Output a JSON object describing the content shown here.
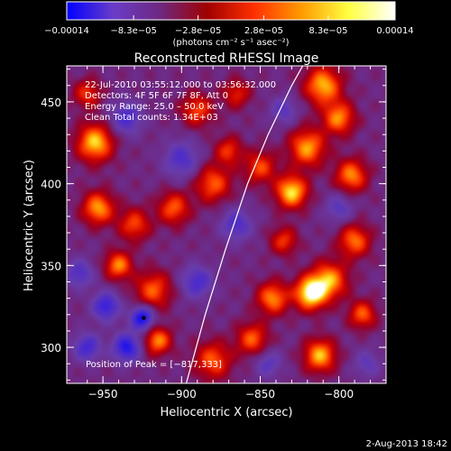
{
  "chart_data": {
    "type": "heatmap",
    "title": "Reconstructed RHESSI Image",
    "xlabel": "Heliocentric X (arcsec)",
    "ylabel": "Heliocentric Y (arcsec)",
    "xlim": [
      -973,
      -770
    ],
    "ylim": [
      278,
      472
    ],
    "x_ticks": [
      -950,
      -900,
      -850,
      -800
    ],
    "x_tick_labels": [
      "−950",
      "−900",
      "−850",
      "−800"
    ],
    "y_ticks": [
      300,
      350,
      400,
      450
    ],
    "y_tick_labels": [
      "300",
      "350",
      "400",
      "450"
    ],
    "colorbar": {
      "range": [
        -0.00014,
        0.00014
      ],
      "ticks": [
        -0.00014,
        -8.3e-05,
        -2.8e-05,
        2.8e-05,
        8.3e-05,
        0.00014
      ],
      "tick_labels": [
        "−0.00014",
        "−8.3e−05",
        "−2.8e−05",
        "2.8e−05",
        "8.3e−05",
        "0.00014"
      ],
      "unit_label": "(photons cm⁻² s⁻¹ asec⁻²)",
      "colors": [
        "#0000ff",
        "#6a3cc8",
        "#6e2880",
        "#a00000",
        "#ff3000",
        "#ff9a00",
        "#ffff40",
        "#ffffff"
      ]
    },
    "info_lines": [
      "22-Jul-2010 03:55:12.000 to 03:56:32.000",
      "Detectors: 4F 5F 6F 7F 8F, Att 0",
      "Energy Range: 25.0 – 50.0 keV",
      "Clean    Total counts: 1.34E+03"
    ],
    "peak_label": "Position of Peak = [−817,333]",
    "peak_position": [
      -817,
      333
    ],
    "marker_point": [
      -924,
      318
    ],
    "limb_curve": [
      [
        -897,
        278
      ],
      [
        -885,
        320
      ],
      [
        -872,
        360
      ],
      [
        -858,
        400
      ],
      [
        -845,
        430
      ],
      [
        -830,
        460
      ],
      [
        -823,
        472
      ]
    ],
    "sources": [
      {
        "x": -818,
        "y": 333,
        "s": 7,
        "a": 1.0
      },
      {
        "x": -806,
        "y": 341,
        "s": 8,
        "a": 0.75
      },
      {
        "x": -830,
        "y": 395,
        "s": 7,
        "a": 0.9
      },
      {
        "x": -820,
        "y": 422,
        "s": 8,
        "a": 0.75
      },
      {
        "x": -800,
        "y": 440,
        "s": 7,
        "a": 0.7
      },
      {
        "x": -810,
        "y": 460,
        "s": 8,
        "a": 0.8
      },
      {
        "x": -792,
        "y": 405,
        "s": 7,
        "a": 0.7
      },
      {
        "x": -850,
        "y": 410,
        "s": 7,
        "a": 0.55
      },
      {
        "x": -870,
        "y": 420,
        "s": 6,
        "a": 0.5
      },
      {
        "x": -880,
        "y": 400,
        "s": 8,
        "a": 0.6
      },
      {
        "x": -905,
        "y": 385,
        "s": 7,
        "a": 0.6
      },
      {
        "x": -930,
        "y": 375,
        "s": 7,
        "a": 0.55
      },
      {
        "x": -955,
        "y": 425,
        "s": 8,
        "a": 0.85
      },
      {
        "x": -953,
        "y": 385,
        "s": 7,
        "a": 0.75
      },
      {
        "x": -890,
        "y": 445,
        "s": 7,
        "a": 0.55
      },
      {
        "x": -940,
        "y": 350,
        "s": 6,
        "a": 0.7
      },
      {
        "x": -918,
        "y": 335,
        "s": 8,
        "a": 0.6
      },
      {
        "x": -915,
        "y": 304,
        "s": 6,
        "a": 0.7
      },
      {
        "x": -880,
        "y": 292,
        "s": 8,
        "a": 0.6
      },
      {
        "x": -842,
        "y": 330,
        "s": 7,
        "a": 0.7
      },
      {
        "x": -855,
        "y": 305,
        "s": 7,
        "a": 0.6
      },
      {
        "x": -812,
        "y": 295,
        "s": 7,
        "a": 0.8
      },
      {
        "x": -785,
        "y": 320,
        "s": 6,
        "a": 0.6
      },
      {
        "x": -790,
        "y": 365,
        "s": 7,
        "a": 0.65
      },
      {
        "x": -835,
        "y": 365,
        "s": 6,
        "a": 0.5
      },
      {
        "x": -865,
        "y": 455,
        "s": 6,
        "a": 0.45
      },
      {
        "x": -960,
        "y": 455,
        "s": 6,
        "a": 0.5
      },
      {
        "x": -935,
        "y": 300,
        "s": 6,
        "a": -0.8
      },
      {
        "x": -948,
        "y": 325,
        "s": 6,
        "a": -0.7
      },
      {
        "x": -925,
        "y": 318,
        "s": 5,
        "a": -0.9
      },
      {
        "x": -890,
        "y": 340,
        "s": 7,
        "a": -0.55
      },
      {
        "x": -900,
        "y": 415,
        "s": 8,
        "a": -0.5
      },
      {
        "x": -935,
        "y": 440,
        "s": 7,
        "a": -0.55
      },
      {
        "x": -865,
        "y": 375,
        "s": 7,
        "a": -0.5
      },
      {
        "x": -835,
        "y": 445,
        "s": 6,
        "a": -0.4
      },
      {
        "x": -800,
        "y": 385,
        "s": 6,
        "a": -0.4
      },
      {
        "x": -960,
        "y": 300,
        "s": 6,
        "a": -0.6
      },
      {
        "x": -965,
        "y": 345,
        "s": 6,
        "a": -0.5
      },
      {
        "x": -845,
        "y": 290,
        "s": 6,
        "a": -0.4
      },
      {
        "x": -782,
        "y": 290,
        "s": 6,
        "a": -0.35
      }
    ]
  },
  "footer": {
    "timestamp": "2-Aug-2013 18:42"
  }
}
